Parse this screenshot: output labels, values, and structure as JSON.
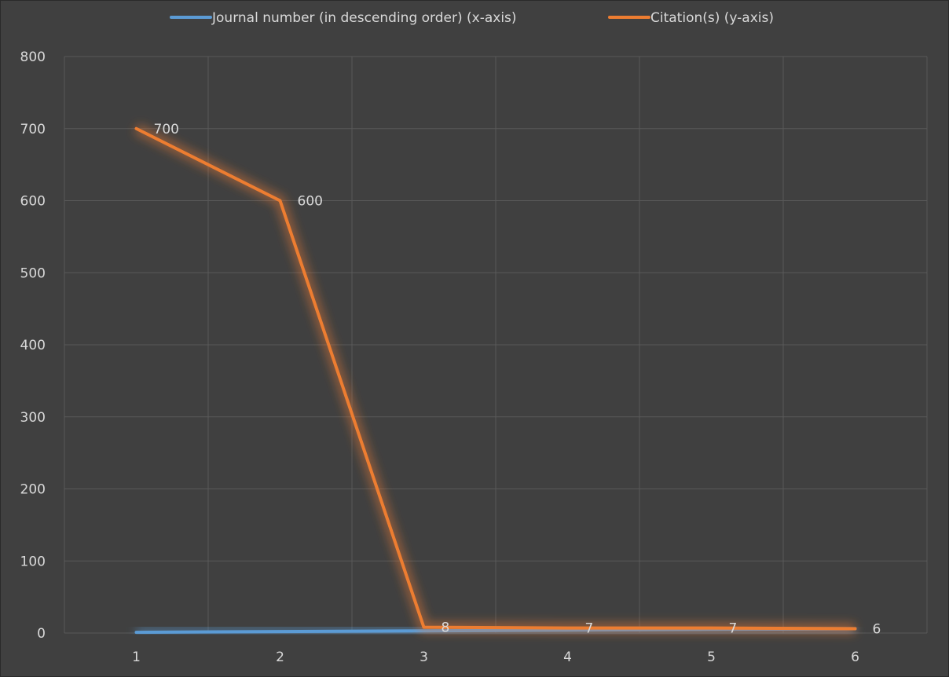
{
  "chart_data": {
    "type": "line",
    "x": [
      1,
      2,
      3,
      4,
      5,
      6
    ],
    "ylim": [
      0,
      800
    ],
    "yticks": [
      0,
      100,
      200,
      300,
      400,
      500,
      600,
      700,
      800
    ],
    "grid": true,
    "legend": "top",
    "series": [
      {
        "name": "Journal number (in descending order) (x-axis)",
        "color": "#5b9bd5",
        "values": [
          1,
          2,
          3,
          4,
          5,
          6
        ],
        "labels": [
          "",
          "",
          "",
          "",
          "",
          ""
        ]
      },
      {
        "name": "Citation(s) (y-axis)",
        "color": "#ed7d31",
        "values": [
          700,
          600,
          8,
          7,
          7,
          6
        ],
        "labels": [
          "700",
          "600",
          "8",
          "7",
          "7",
          "6"
        ]
      }
    ]
  }
}
